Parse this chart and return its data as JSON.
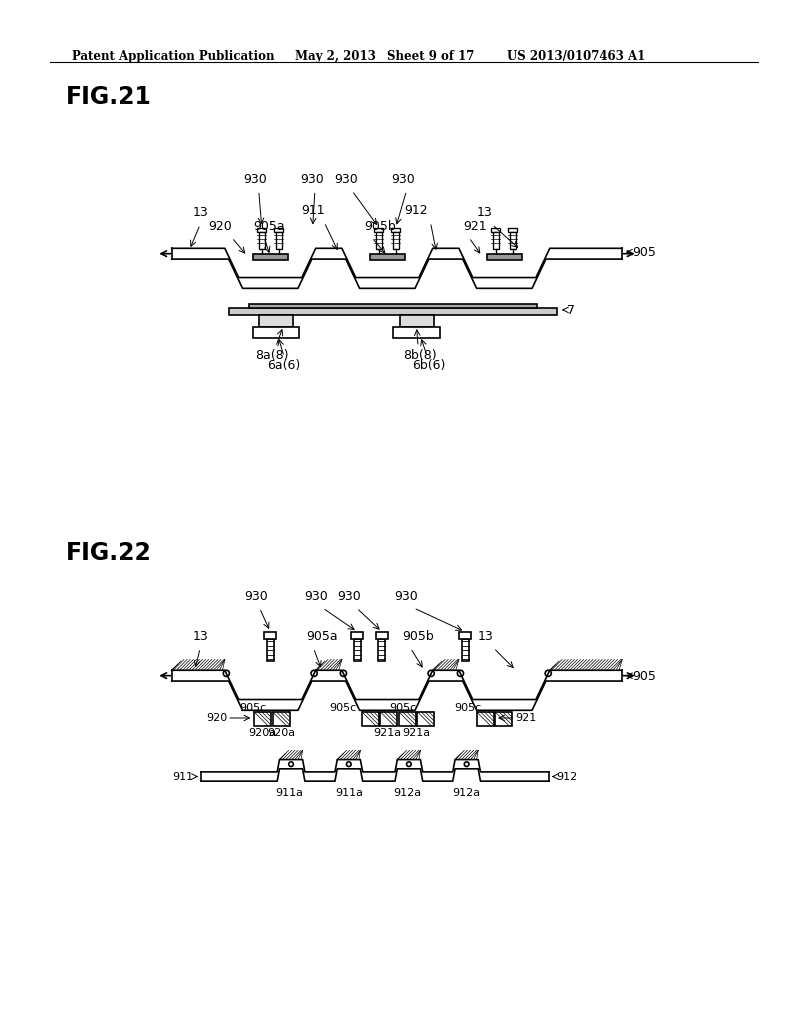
{
  "bg_color": "#ffffff",
  "header_text": "Patent Application Publication",
  "header_date": "May 2, 2013",
  "header_sheet": "Sheet 9 of 17",
  "header_patent": "US 2013/0107463 A1",
  "fig21_label": "FIG.21",
  "fig22_label": "FIG.22"
}
